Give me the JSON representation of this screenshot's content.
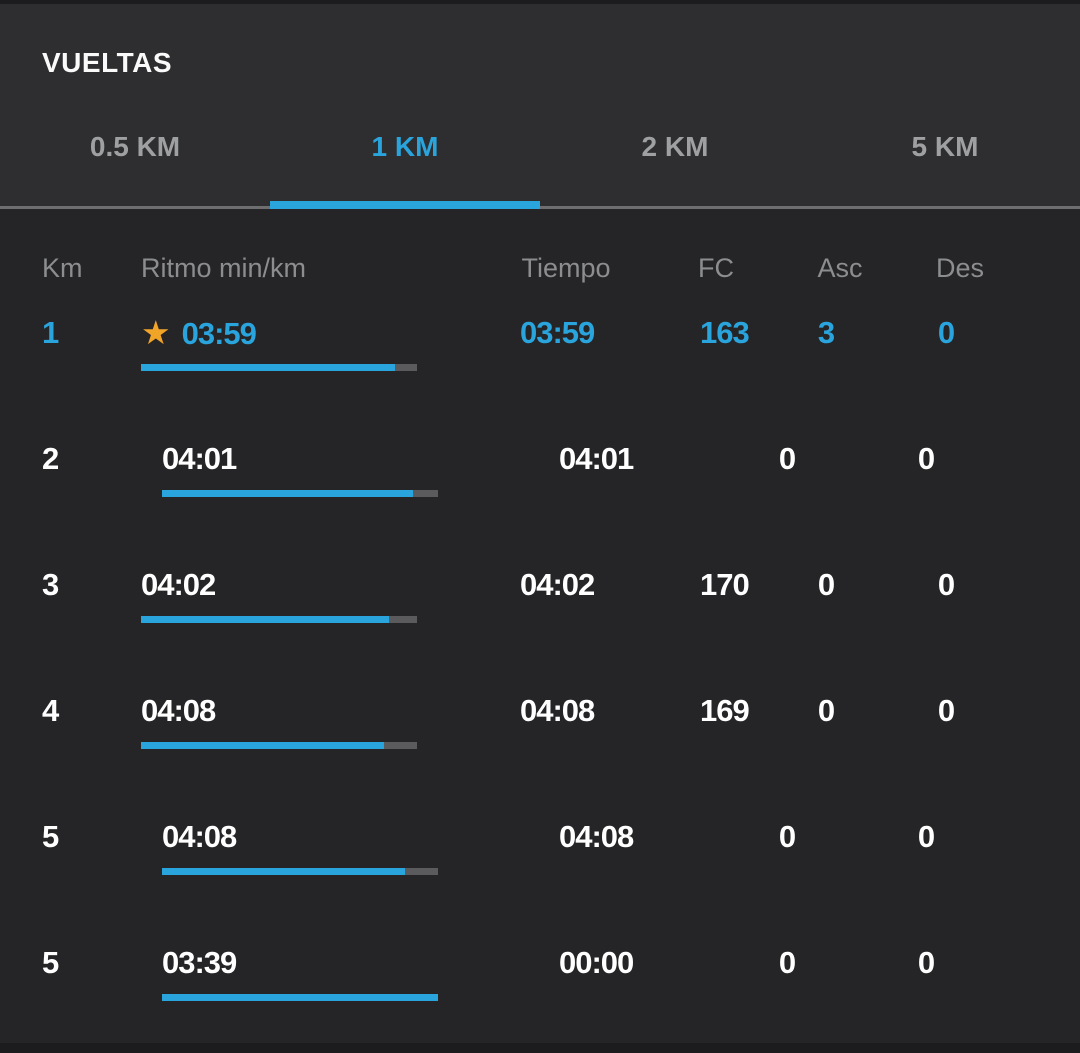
{
  "title": "VUELTAS",
  "tabs": [
    {
      "label": "0.5 KM",
      "active": false
    },
    {
      "label": "1 KM",
      "active": true
    },
    {
      "label": "2 KM",
      "active": false
    },
    {
      "label": "5 KM",
      "active": false
    }
  ],
  "colors": {
    "accent_blue": "#2aa4dc",
    "star_gold": "#f0a428",
    "bar_track_gray": "#5b5b5d",
    "header_text_gray": "#8b8d8e",
    "divider_gray": "#6e6e70"
  },
  "icons": {
    "best_lap": "star-icon"
  },
  "table": {
    "columns": [
      "Km",
      "Ritmo min/km",
      "Tiempo",
      "FC",
      "Asc",
      "Des"
    ],
    "rows": [
      {
        "km": "1",
        "pace": "03:59",
        "tiempo": "03:59",
        "fc": "163",
        "asc": "3",
        "des": "0",
        "best": true,
        "highlight": true,
        "bar_fill": 0.92
      },
      {
        "km": "2",
        "pace": "04:01",
        "tiempo": "04:01",
        "fc": "",
        "asc": "0",
        "des": "0",
        "best": false,
        "highlight": false,
        "bar_fill": 0.91
      },
      {
        "km": "3",
        "pace": "04:02",
        "tiempo": "04:02",
        "fc": "170",
        "asc": "0",
        "des": "0",
        "best": false,
        "highlight": false,
        "bar_fill": 0.9
      },
      {
        "km": "4",
        "pace": "04:08",
        "tiempo": "04:08",
        "fc": "169",
        "asc": "0",
        "des": "0",
        "best": false,
        "highlight": false,
        "bar_fill": 0.88
      },
      {
        "km": "5",
        "pace": "04:08",
        "tiempo": "04:08",
        "fc": "",
        "asc": "0",
        "des": "0",
        "best": false,
        "highlight": false,
        "bar_fill": 0.88
      },
      {
        "km": "5",
        "pace": "03:39",
        "tiempo": "00:00",
        "fc": "",
        "asc": "0",
        "des": "0",
        "best": false,
        "highlight": false,
        "bar_fill": 1.0
      }
    ]
  }
}
